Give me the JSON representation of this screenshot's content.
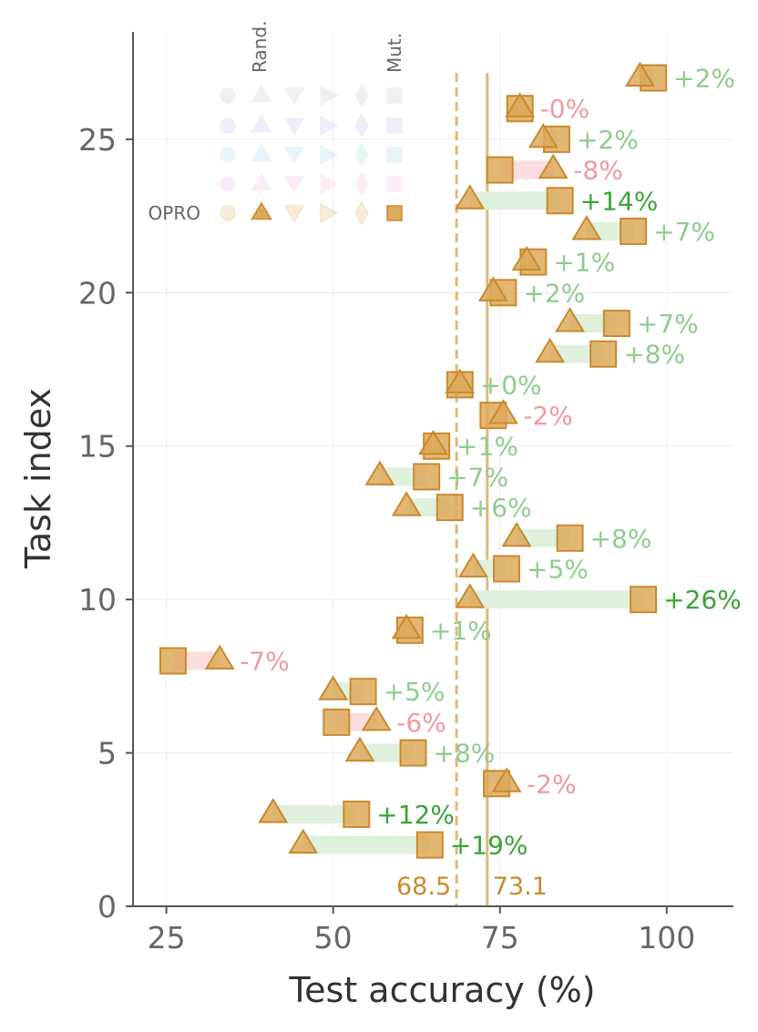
{
  "chart_data": {
    "type": "scatter",
    "xlabel": "Test accuracy (%)",
    "ylabel": "Task index",
    "xlim": [
      20,
      110
    ],
    "ylim": [
      0,
      28.5
    ],
    "xticks": [
      "25",
      "50",
      "75",
      "100"
    ],
    "yticks": [
      "0",
      "5",
      "10",
      "15",
      "20",
      "25"
    ],
    "grid": true,
    "reference_lines": [
      {
        "label": "68.5",
        "value": 68.5,
        "style": "dashed"
      },
      {
        "label": "73.1",
        "value": 73.1,
        "style": "solid"
      }
    ],
    "legend": {
      "placement": "top-left",
      "column_headers": [
        "Rand.",
        "Mut."
      ],
      "row_labels": [
        "",
        "",
        "",
        "",
        "OPRO"
      ]
    },
    "tasks": [
      {
        "index": 2,
        "before": 45.5,
        "after": 64.5,
        "delta": "+19%"
      },
      {
        "index": 3,
        "before": 41.0,
        "after": 53.5,
        "delta": "+12%"
      },
      {
        "index": 4,
        "before": 76.0,
        "after": 74.5,
        "delta": "-2%"
      },
      {
        "index": 5,
        "before": 54.0,
        "after": 62.0,
        "delta": "+8%"
      },
      {
        "index": 6,
        "before": 56.5,
        "after": 50.5,
        "delta": "-6%"
      },
      {
        "index": 7,
        "before": 50.0,
        "after": 54.5,
        "delta": "+5%"
      },
      {
        "index": 8,
        "before": 33.0,
        "after": 26.0,
        "delta": "-7%"
      },
      {
        "index": 9,
        "before": 61.0,
        "after": 61.5,
        "delta": "+1%"
      },
      {
        "index": 10,
        "before": 70.5,
        "after": 96.5,
        "delta": "+26%"
      },
      {
        "index": 11,
        "before": 71.0,
        "after": 76.0,
        "delta": "+5%"
      },
      {
        "index": 12,
        "before": 77.5,
        "after": 85.5,
        "delta": "+8%"
      },
      {
        "index": 13,
        "before": 61.0,
        "after": 67.5,
        "delta": "+6%"
      },
      {
        "index": 14,
        "before": 57.0,
        "after": 64.0,
        "delta": "+7%"
      },
      {
        "index": 15,
        "before": 65.0,
        "after": 65.5,
        "delta": "+1%"
      },
      {
        "index": 16,
        "before": 75.5,
        "after": 74.0,
        "delta": "-2%"
      },
      {
        "index": 17,
        "before": 69.0,
        "after": 69.0,
        "delta": "+0%"
      },
      {
        "index": 18,
        "before": 82.5,
        "after": 90.5,
        "delta": "+8%"
      },
      {
        "index": 19,
        "before": 85.5,
        "after": 92.5,
        "delta": "+7%"
      },
      {
        "index": 20,
        "before": 74.0,
        "after": 75.5,
        "delta": "+2%"
      },
      {
        "index": 21,
        "before": 79.0,
        "after": 80.0,
        "delta": "+1%"
      },
      {
        "index": 22,
        "before": 88.0,
        "after": 95.0,
        "delta": "+7%"
      },
      {
        "index": 23,
        "before": 70.5,
        "after": 84.0,
        "delta": "+14%"
      },
      {
        "index": 24,
        "before": 83.0,
        "after": 75.0,
        "delta": "-8%"
      },
      {
        "index": 25,
        "before": 81.5,
        "after": 83.5,
        "delta": "+2%"
      },
      {
        "index": 26,
        "before": 78.0,
        "after": 78.0,
        "delta": "-0%"
      },
      {
        "index": 27,
        "before": 96.0,
        "after": 98.0,
        "delta": "+2%"
      }
    ]
  },
  "colors": {
    "marker_fill": "#dda95a",
    "marker_stroke": "#c98a2e",
    "positive_strong": "#3aa33a",
    "positive_light": "#8fcc8f",
    "negative_strong": "#d9535a",
    "negative_light": "#ef9aa0",
    "positive_bar": "#dff0dd",
    "negative_bar": "#fbdde0",
    "axis": "#555555",
    "grid": "#ececec"
  }
}
